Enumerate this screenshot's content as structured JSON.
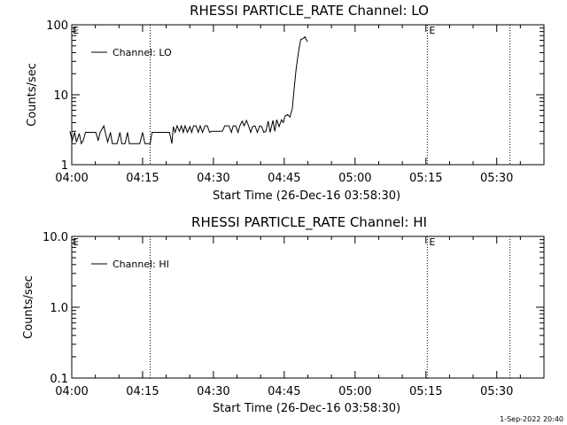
{
  "footer": {
    "timestamp": "1-Sep-2022 20:40"
  },
  "chart_data": [
    {
      "type": "line",
      "title": "RHESSI PARTICLE_RATE Channel: LO",
      "xlabel": "Start Time (26-Dec-16 03:58:30)",
      "ylabel": "Counts/sec",
      "yscale": "log",
      "ylim": [
        1,
        100
      ],
      "xlim_minutes_after_04_00": [
        0,
        100
      ],
      "x_ticks": [
        "04:00",
        "04:15",
        "04:30",
        "04:45",
        "05:00",
        "05:15",
        "05:30"
      ],
      "y_ticks": [
        "1",
        "10",
        "100"
      ],
      "legend": {
        "label": "Channel: LO",
        "position": "top-left"
      },
      "grid": false,
      "line_color": "#000000",
      "markers": [
        {
          "time": "04:16.6",
          "label": ""
        },
        {
          "time": "05:15.3",
          "label": "E"
        },
        {
          "time": "05:32.8",
          "label": ""
        }
      ],
      "corner_flags": [
        "E"
      ],
      "series": [
        {
          "x": [
            "03:59.6",
            "04:00.1",
            "04:00.6",
            "04:01.0",
            "04:01.6",
            "04:02.0",
            "04:02.4",
            "04:02.9",
            "04:03.3",
            "04:03.8",
            "04:04.2",
            "04:04.6",
            "04:05.1",
            "04:05.6",
            "04:06.0",
            "04:06.8",
            "04:07.1",
            "04:07.6",
            "04:08.2",
            "04:08.6",
            "04:09.1",
            "04:09.6",
            "04:10.2",
            "04:10.6",
            "04:11.0",
            "04:11.3",
            "04:11.8",
            "04:12.2",
            "04:12.6",
            "04:13.3",
            "04:13.8",
            "04:14.4",
            "04:15.0",
            "04:15.5",
            "04:16.6",
            "04:17.0",
            "04:20.7",
            "04:21.2",
            "04:21.5",
            "04:21.9",
            "04:22.3",
            "04:22.8",
            "04:23.2",
            "04:23.6",
            "04:24.0",
            "04:24.5",
            "04:25.0",
            "04:25.4",
            "04:25.8",
            "04:26.3",
            "04:26.8",
            "04:27.2",
            "04:27.7",
            "04:28.2",
            "04:28.7",
            "04:29.2",
            "04:29.6",
            "04:30.1",
            "04:31.9",
            "04:32.4",
            "04:32.8",
            "04:33.3",
            "04:33.8",
            "04:34.2",
            "04:34.7",
            "04:35.2",
            "04:35.6",
            "04:36.1",
            "04:36.5",
            "04:37.0",
            "04:37.5",
            "04:37.9",
            "04:38.3",
            "04:38.8",
            "04:39.3",
            "04:39.8",
            "04:40.2",
            "04:40.7",
            "04:41.1",
            "04:41.6",
            "04:42.0",
            "04:42.6",
            "04:43.0",
            "04:43.4",
            "04:43.9",
            "04:44.4",
            "04:44.8",
            "04:45.2",
            "04:45.7",
            "04:46.2",
            "04:46.7",
            "04:47.1",
            "04:47.5",
            "04:48.0",
            "04:48.5",
            "04:48.9",
            "04:49.4",
            "04:49.9"
          ],
          "y": [
            3.0,
            2.2,
            2.9,
            2.1,
            2.8,
            2.0,
            2.2,
            2.9,
            2.9,
            2.9,
            2.9,
            2.9,
            2.9,
            2.2,
            2.9,
            3.6,
            2.9,
            2.1,
            2.9,
            2.0,
            2.0,
            2.0,
            2.9,
            2.0,
            2.0,
            2.0,
            2.9,
            2.0,
            2.0,
            2.0,
            2.0,
            2.0,
            2.9,
            2.0,
            2.0,
            2.9,
            2.9,
            2.0,
            3.5,
            2.9,
            3.6,
            3.0,
            3.6,
            2.9,
            3.6,
            2.9,
            3.5,
            2.9,
            3.6,
            3.6,
            2.9,
            3.6,
            2.9,
            3.6,
            3.6,
            2.9,
            3.0,
            3.0,
            3.0,
            3.6,
            3.6,
            3.6,
            2.9,
            3.6,
            3.6,
            2.9,
            3.6,
            4.2,
            3.6,
            4.3,
            3.5,
            2.9,
            3.5,
            3.6,
            2.9,
            3.6,
            3.5,
            2.9,
            3.0,
            4.2,
            2.9,
            4.3,
            3.0,
            4.4,
            3.5,
            4.4,
            4.0,
            5.0,
            5.2,
            4.8,
            6.3,
            12.0,
            23.0,
            40.0,
            62.0,
            63.0,
            67.0,
            57.0
          ]
        }
      ]
    },
    {
      "type": "line",
      "title": "RHESSI PARTICLE_RATE Channel: HI",
      "xlabel": "Start Time (26-Dec-16 03:58:30)",
      "ylabel": "Counts/sec",
      "yscale": "log",
      "ylim": [
        0.1,
        10.0
      ],
      "xlim_minutes_after_04_00": [
        0,
        100
      ],
      "x_ticks": [
        "04:00",
        "04:15",
        "04:30",
        "04:45",
        "05:00",
        "05:15",
        "05:30"
      ],
      "y_ticks": [
        "0.1",
        "1.0",
        "10.0"
      ],
      "legend": {
        "label": "Channel: HI",
        "position": "top-left"
      },
      "grid": false,
      "line_color": "#000000",
      "markers": [
        {
          "time": "04:16.6",
          "label": ""
        },
        {
          "time": "05:15.3",
          "label": "E"
        },
        {
          "time": "05:32.8",
          "label": ""
        }
      ],
      "corner_flags": [
        "E"
      ],
      "series": []
    }
  ]
}
